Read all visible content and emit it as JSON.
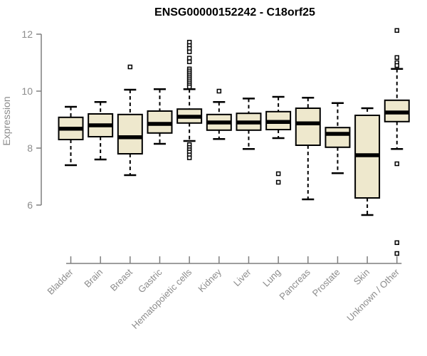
{
  "chart_data": {
    "type": "boxplot",
    "title": "ENSG00000152242 - C18orf25",
    "xlabel": "",
    "ylabel": "Expression",
    "ylim": [
      6,
      12
    ],
    "yticks": [
      12,
      10,
      8,
      6
    ],
    "grid": false,
    "legend": false,
    "categories": [
      "Bladder",
      "Brain",
      "Breast",
      "Gastric",
      "Hematopoietic cells",
      "Kidney",
      "Liver",
      "Lung",
      "Pancreas",
      "Prostate",
      "Skin",
      "Unknown / Other"
    ],
    "series": [
      {
        "name": "Bladder",
        "whisker_low": 7.4,
        "q1": 8.3,
        "median": 8.68,
        "q3": 9.08,
        "whisker_high": 9.45,
        "outliers": []
      },
      {
        "name": "Brain",
        "whisker_low": 7.6,
        "q1": 8.4,
        "median": 8.8,
        "q3": 9.2,
        "whisker_high": 9.62,
        "outliers": []
      },
      {
        "name": "Breast",
        "whisker_low": 7.05,
        "q1": 7.8,
        "median": 8.38,
        "q3": 9.18,
        "whisker_high": 10.05,
        "outliers": [
          10.85
        ]
      },
      {
        "name": "Gastric",
        "whisker_low": 8.15,
        "q1": 8.53,
        "median": 8.85,
        "q3": 9.3,
        "whisker_high": 10.07,
        "outliers": []
      },
      {
        "name": "Hematopoietic cells",
        "whisker_low": 8.25,
        "q1": 8.88,
        "median": 9.1,
        "q3": 9.37,
        "whisker_high": 10.07,
        "outliers": [
          11.72,
          11.6,
          11.5,
          11.38,
          11.16,
          11.03,
          10.78,
          10.71,
          10.64,
          10.57,
          10.5,
          10.43,
          10.36,
          10.29,
          10.22,
          10.15,
          8.12,
          8.02,
          7.94,
          7.86,
          7.76,
          7.66
        ]
      },
      {
        "name": "Kidney",
        "whisker_low": 8.32,
        "q1": 8.63,
        "median": 8.9,
        "q3": 9.18,
        "whisker_high": 9.62,
        "outliers": [
          10.0
        ]
      },
      {
        "name": "Liver",
        "whisker_low": 7.97,
        "q1": 8.63,
        "median": 8.9,
        "q3": 9.22,
        "whisker_high": 9.74,
        "outliers": []
      },
      {
        "name": "Lung",
        "whisker_low": 8.35,
        "q1": 8.65,
        "median": 8.92,
        "q3": 9.28,
        "whisker_high": 9.8,
        "outliers": [
          7.1,
          6.8
        ]
      },
      {
        "name": "Pancreas",
        "whisker_low": 6.2,
        "q1": 8.1,
        "median": 8.87,
        "q3": 9.4,
        "whisker_high": 9.77,
        "outliers": []
      },
      {
        "name": "Prostate",
        "whisker_low": 7.12,
        "q1": 8.03,
        "median": 8.5,
        "q3": 8.72,
        "whisker_high": 9.58,
        "outliers": []
      },
      {
        "name": "Skin",
        "whisker_low": 5.65,
        "q1": 6.25,
        "median": 7.75,
        "q3": 9.15,
        "whisker_high": 9.4,
        "outliers": []
      },
      {
        "name": "Unknown / Other",
        "whisker_low": 7.97,
        "q1": 8.93,
        "median": 9.25,
        "q3": 9.68,
        "whisker_high": 10.78,
        "outliers": [
          12.13,
          11.18,
          11.0,
          10.9,
          7.45,
          4.68,
          4.3
        ]
      }
    ],
    "colors": {
      "box_fill": "#EEE8CD",
      "box_border": "#000000",
      "median": "#000000",
      "whisker": "#000000",
      "outlier": "#000000",
      "axis": "#7F7F7F",
      "tick_label": "#8C8C8C",
      "title": "#000000",
      "background": "#FFFFFF"
    }
  }
}
